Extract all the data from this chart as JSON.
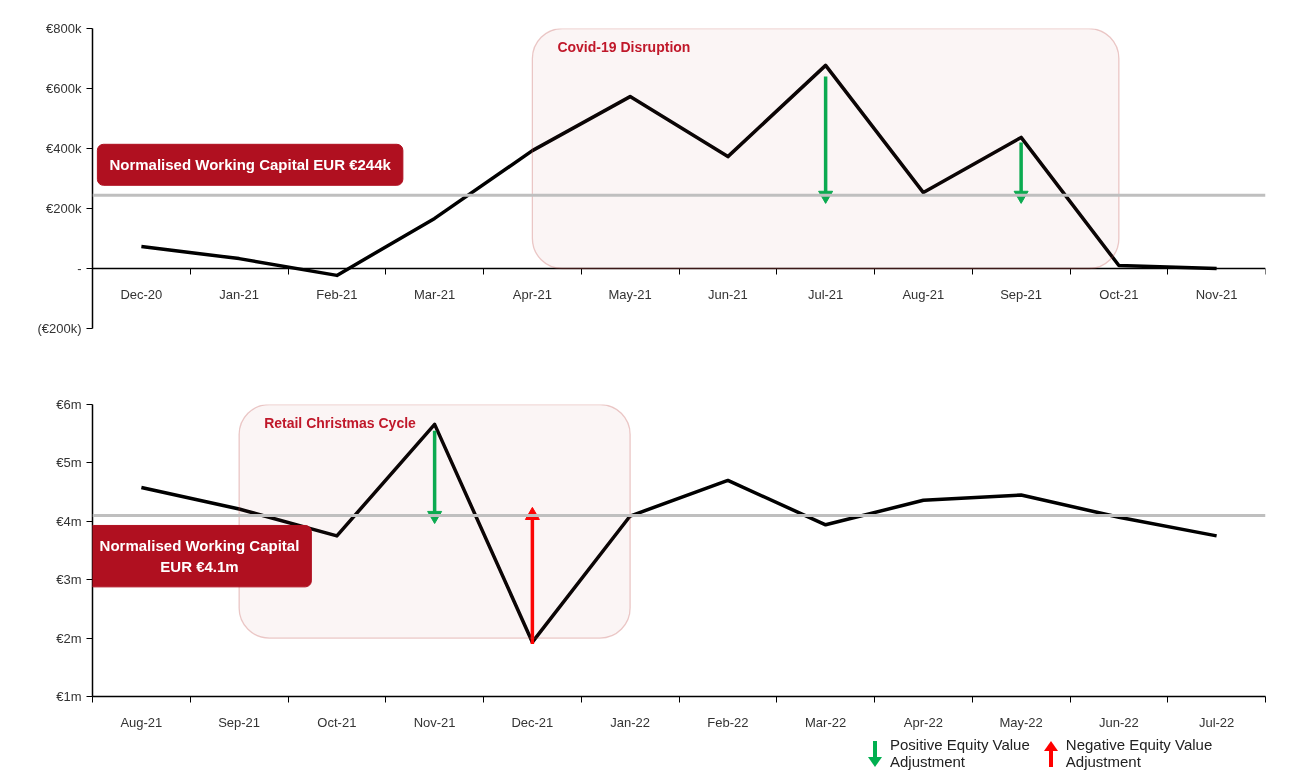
{
  "chart_data": [
    {
      "type": "line",
      "categories": [
        "Dec-20",
        "Jan-21",
        "Feb-21",
        "Mar-21",
        "Apr-21",
        "May-21",
        "Jun-21",
        "Jul-21",
        "Aug-21",
        "Sep-21",
        "Oct-21",
        "Nov-21"
      ],
      "series": [
        {
          "color": "#000000",
          "values": [
            73,
            33,
            -23,
            167,
            393,
            573,
            373,
            677,
            253,
            437,
            10,
            0
          ]
        },
        {
          "x": [
            "Jul-21",
            "Jul-21"
          ],
          "color": "#00b050",
          "values": [
            640,
            244
          ],
          "marker": "triangle"
        },
        {
          "x": [
            "Sep-21",
            "Sep-21"
          ],
          "color": "#00b050",
          "values": [
            420,
            244
          ],
          "marker": "triangle"
        }
      ],
      "grid": false,
      "marker": "none",
      "line_style": "solid",
      "ylim": [
        -200,
        800
      ],
      "yticks": [
        {
          "value": -200,
          "label": "(€200k)"
        },
        {
          "value": 0,
          "label": "-"
        },
        {
          "value": 200,
          "label": "€200k"
        },
        {
          "value": 400,
          "label": "€400k"
        },
        {
          "value": 600,
          "label": "€600k"
        },
        {
          "value": 800,
          "label": "€800k"
        }
      ],
      "ref_lines": [
        {
          "axis": "y",
          "value": 244,
          "label": "Normalised Working Capital EUR €244k",
          "color": "#bfbfbf"
        }
      ],
      "bands": [
        {
          "axis": "x",
          "from": "Apr-21",
          "to": "Oct-21",
          "label": "Covid-19 Disruption",
          "color": "#c0504d"
        }
      ]
    },
    {
      "type": "line",
      "categories": [
        "Aug-21",
        "Sep-21",
        "Oct-21",
        "Nov-21",
        "Dec-21",
        "Jan-22",
        "Feb-22",
        "Mar-22",
        "Apr-22",
        "May-22",
        "Jun-22",
        "Jul-22"
      ],
      "series": [
        {
          "color": "#000000",
          "values": [
            4.58,
            4.21,
            3.75,
            5.66,
            1.93,
            4.09,
            4.7,
            3.94,
            4.36,
            4.45,
            4.07,
            3.75
          ]
        },
        {
          "x": [
            "Nov-21",
            "Nov-21"
          ],
          "color": "#00b050",
          "values": [
            5.55,
            4.1
          ],
          "marker": "triangle"
        },
        {
          "x": [
            "Dec-21",
            "Dec-21"
          ],
          "color": "#ff0000",
          "values": [
            1.9,
            4.1
          ],
          "marker": "triangle"
        }
      ],
      "grid": false,
      "marker": "none",
      "line_style": "solid",
      "ylim": [
        1,
        6
      ],
      "yticks": [
        {
          "value": 1,
          "label": "€1m"
        },
        {
          "value": 2,
          "label": "€2m"
        },
        {
          "value": 3,
          "label": "€3m"
        },
        {
          "value": 4,
          "label": "€4m"
        },
        {
          "value": 5,
          "label": "€5m"
        },
        {
          "value": 6,
          "label": "€6m"
        }
      ],
      "ref_lines": [
        {
          "axis": "y",
          "value": 4.1,
          "label": "Normalised Working Capital\nEUR €4.1m",
          "color": "#bfbfbf"
        }
      ],
      "bands": [
        {
          "axis": "x",
          "from": "Sep-21",
          "to": "Jan-22",
          "label": "Retail Christmas Cycle",
          "color": "#c0504d"
        }
      ],
      "annotations": [
        "Positive Equity Value\nAdjustment",
        "Negative Equity Value\nAdjustment"
      ]
    }
  ]
}
